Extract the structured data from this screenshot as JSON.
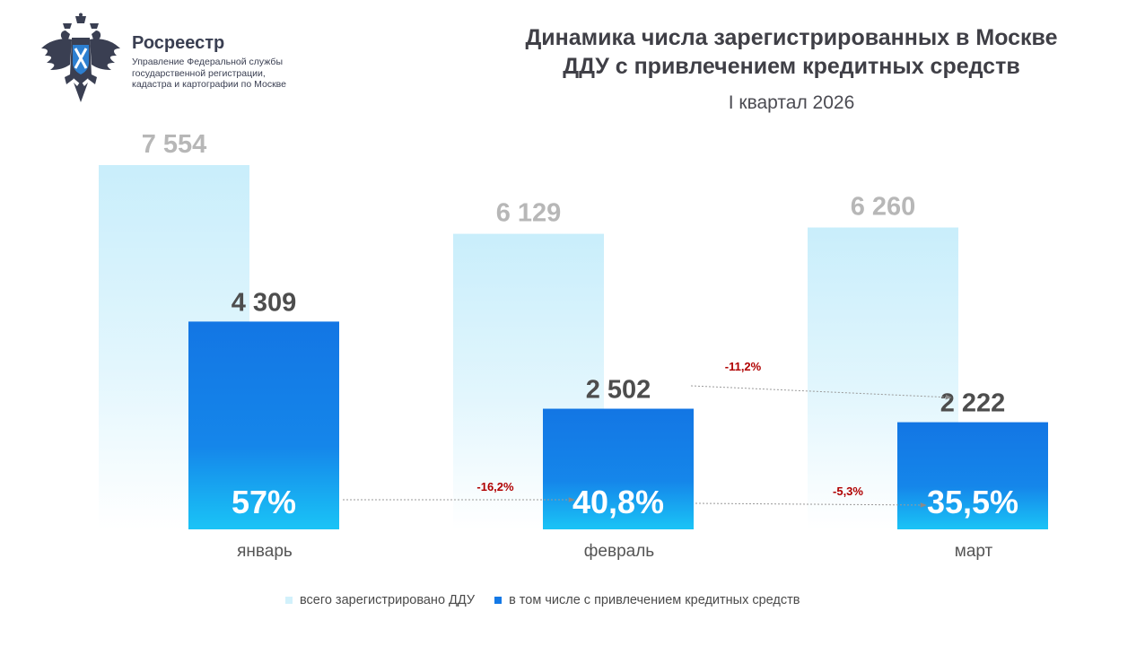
{
  "header": {
    "org_name": "Росреестр",
    "org_sub": [
      "Управление Федеральной службы",
      "государственной регистрации,",
      "кадастра и картографии по Москве"
    ],
    "title_line1": "Динамика числа зарегистрированных в Москве",
    "title_line2": "ДДУ с привлечением кредитных средств",
    "subtitle": "I квартал 2026",
    "logo_icon": "russian-eagle-emblem-icon"
  },
  "colors": {
    "total_bar": "#d2f1fb",
    "credit_bar": "#1479e6",
    "credit_bar_bottom": "#19c2f5",
    "change_text": "#b00000",
    "total_label": "#b7b7b7",
    "credit_label": "#4d4d4d"
  },
  "chart_data": {
    "type": "bar",
    "categories": [
      "январь",
      "февраль",
      "март"
    ],
    "series": [
      {
        "name": "всего зарегистрировано ДДУ",
        "values": [
          7554,
          6129,
          6260
        ],
        "labels": [
          "7 554",
          "6 129",
          "6 260"
        ]
      },
      {
        "name": "в том числе с привлечением кредитных средств",
        "values": [
          4309,
          2502,
          2222
        ],
        "labels": [
          "4 309",
          "2 502",
          "2 222"
        ]
      }
    ],
    "share_labels": [
      "57%",
      "40,8%",
      "35,5%"
    ],
    "changes": [
      {
        "label": "-11,2%",
        "between": "credit values февраль → март"
      },
      {
        "label": "-16,2%",
        "between": "share январь → февраль"
      },
      {
        "label": "-5,3%",
        "between": "share февраль → март"
      }
    ],
    "legend_position": "bottom"
  }
}
